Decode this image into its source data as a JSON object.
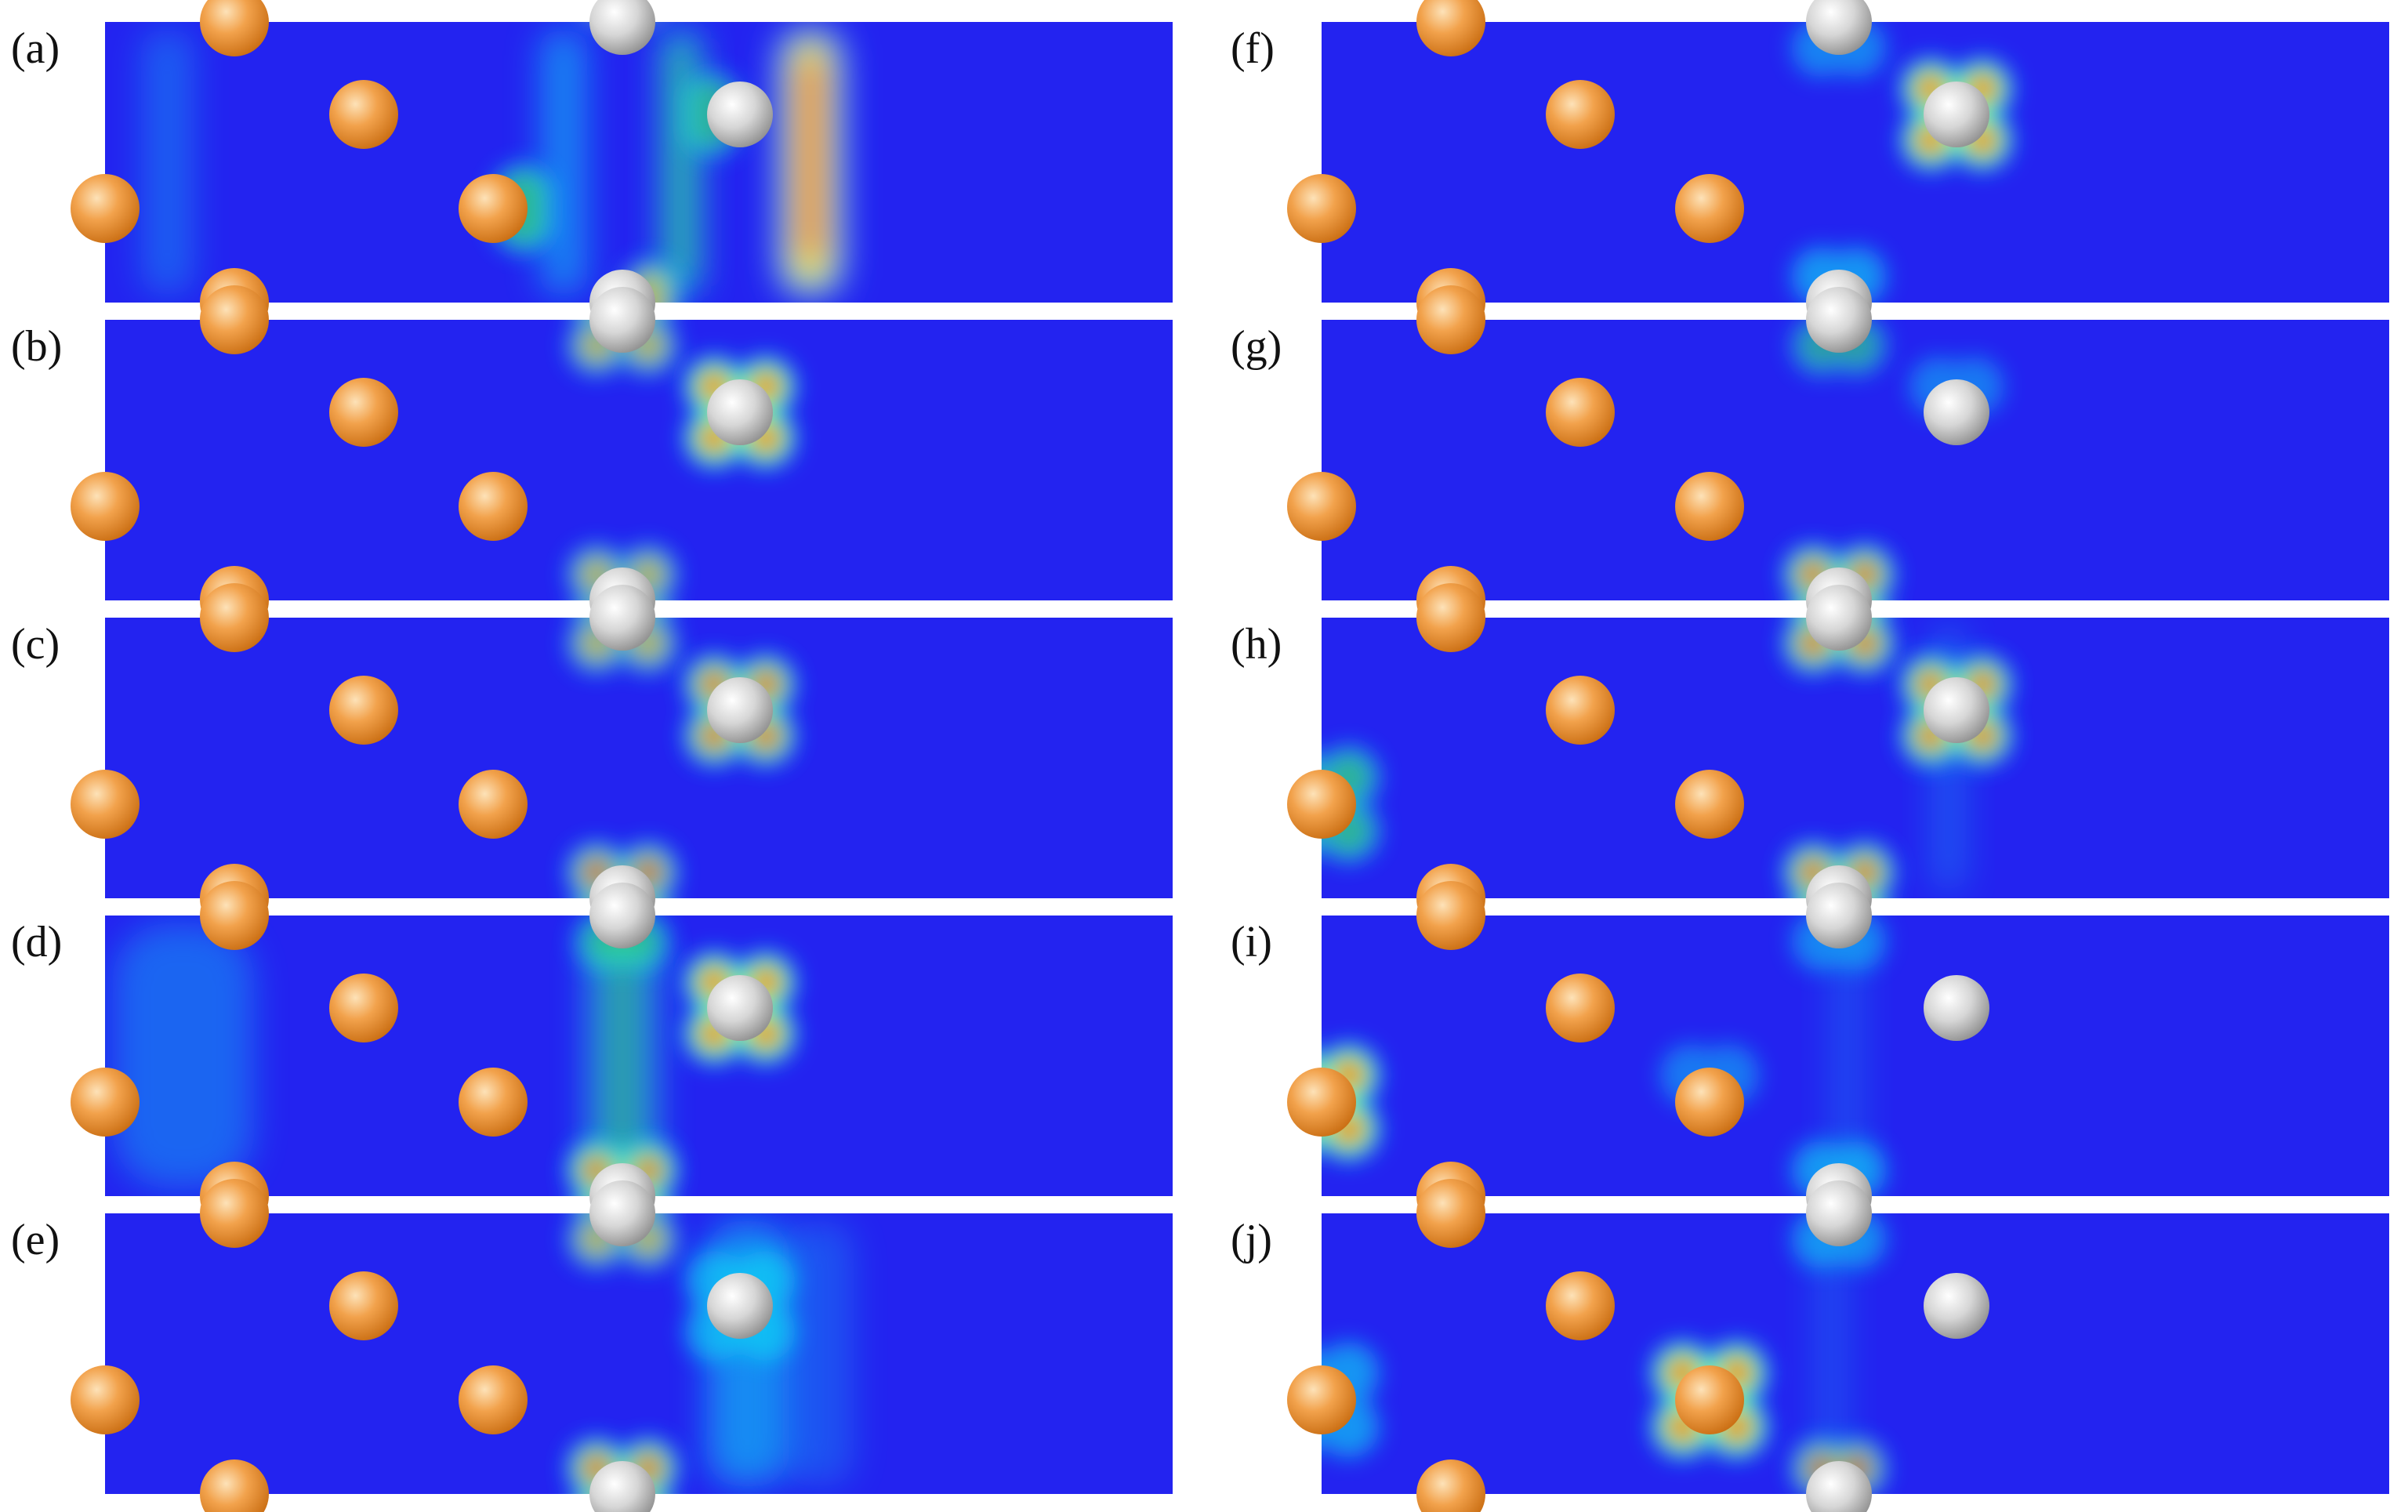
{
  "figure": {
    "panels": [
      {
        "label": "(a)",
        "silver_glow": [
          {
            "atom": 0,
            "color": "red",
            "strength": 0.5,
            "pattern": "top"
          },
          {
            "atom": 1,
            "color": "green",
            "strength": 0.5,
            "pattern": "left"
          },
          {
            "atom": 2,
            "color": "yellow",
            "strength": 0.6,
            "pattern": "right"
          }
        ],
        "gold_glow": [
          {
            "atom": 3,
            "color": "green",
            "strength": 0.6,
            "pattern": "right"
          }
        ],
        "bands": [
          {
            "at": "silver-1",
            "offset": 0.9,
            "width": 0.55,
            "color": "red",
            "strength": 1.0
          },
          {
            "at": "silver-0",
            "offset": 0.75,
            "width": 0.35,
            "color": "green",
            "strength": 0.7
          },
          {
            "at": "gold-3",
            "offset": 0.9,
            "width": 0.4,
            "color": "cyan",
            "strength": 0.5
          },
          {
            "at": "gold-2",
            "offset": 0.8,
            "width": 0.45,
            "color": "cyan",
            "strength": 0.3
          }
        ]
      },
      {
        "label": "(b)",
        "silver_glow": [
          {
            "atom": 0,
            "color": "yellow",
            "strength": 0.6,
            "pattern": "cross"
          },
          {
            "atom": 1,
            "color": "red",
            "strength": 0.9,
            "pattern": "cross"
          },
          {
            "atom": 2,
            "color": "yellow",
            "strength": 0.6,
            "pattern": "cross"
          }
        ],
        "gold_glow": [],
        "bands": []
      },
      {
        "label": "(c)",
        "silver_glow": [
          {
            "atom": 0,
            "color": "yellow",
            "strength": 0.6,
            "pattern": "cross"
          },
          {
            "atom": 1,
            "color": "red",
            "strength": 0.8,
            "pattern": "cross"
          },
          {
            "atom": 2,
            "color": "red",
            "strength": 0.7,
            "pattern": "cross"
          }
        ],
        "gold_glow": [],
        "bands": []
      },
      {
        "label": "(d)",
        "silver_glow": [
          {
            "atom": 0,
            "color": "green",
            "strength": 0.5,
            "pattern": "bottom"
          },
          {
            "atom": 1,
            "color": "red",
            "strength": 0.9,
            "pattern": "cross"
          },
          {
            "atom": 2,
            "color": "red",
            "strength": 0.8,
            "pattern": "cross"
          }
        ],
        "gold_glow": [],
        "bands": [
          {
            "at": "silver-0",
            "offset": 0.0,
            "width": 0.6,
            "color": "green",
            "strength": 0.6
          },
          {
            "at": "gold-2",
            "offset": 1.0,
            "width": 1.2,
            "color": "cyan",
            "strength": 0.35
          }
        ]
      },
      {
        "label": "(e)",
        "silver_glow": [
          {
            "atom": 0,
            "color": "yellow",
            "strength": 0.6,
            "pattern": "cross"
          },
          {
            "atom": 1,
            "color": "cyan",
            "strength": 0.5,
            "pattern": "cross"
          },
          {
            "atom": 2,
            "color": "red",
            "strength": 0.8,
            "pattern": "cross"
          }
        ],
        "gold_glow": [],
        "bands": [
          {
            "at": "silver-1",
            "offset": 0.1,
            "width": 0.7,
            "color": "cyan",
            "strength": 0.55
          },
          {
            "at": "silver-1",
            "offset": 1.0,
            "width": 0.6,
            "color": "cyan",
            "strength": 0.25
          }
        ]
      },
      {
        "label": "(f)",
        "silver_glow": [
          {
            "atom": 0,
            "color": "cyan",
            "strength": 0.4,
            "pattern": "bottom"
          },
          {
            "atom": 1,
            "color": "red",
            "strength": 0.95,
            "pattern": "cross"
          },
          {
            "atom": 2,
            "color": "cyan",
            "strength": 0.5,
            "pattern": "top"
          }
        ],
        "gold_glow": [],
        "bands": []
      },
      {
        "label": "(g)",
        "silver_glow": [
          {
            "atom": 0,
            "color": "green",
            "strength": 0.5,
            "pattern": "bottom"
          },
          {
            "atom": 1,
            "color": "cyan",
            "strength": 0.35,
            "pattern": "top"
          },
          {
            "atom": 2,
            "color": "red",
            "strength": 0.8,
            "pattern": "cross"
          }
        ],
        "gold_glow": [],
        "bands": []
      },
      {
        "label": "(h)",
        "silver_glow": [
          {
            "atom": 0,
            "color": "red",
            "strength": 0.8,
            "pattern": "cross"
          },
          {
            "atom": 1,
            "color": "red",
            "strength": 0.85,
            "pattern": "cross"
          },
          {
            "atom": 2,
            "color": "red",
            "strength": 0.8,
            "pattern": "cross"
          }
        ],
        "gold_glow": [
          {
            "atom": 3,
            "color": "green",
            "strength": 0.6,
            "pattern": "cross"
          }
        ],
        "bands": [
          {
            "at": "silver-1",
            "offset": -0.1,
            "width": 0.3,
            "color": "cyan",
            "strength": 0.25
          }
        ]
      },
      {
        "label": "(i)",
        "silver_glow": [
          {
            "atom": 0,
            "color": "cyan",
            "strength": 0.4,
            "pattern": "bottom"
          },
          {
            "atom": 2,
            "color": "cyan",
            "strength": 0.5,
            "pattern": "top"
          }
        ],
        "gold_glow": [
          {
            "atom": 3,
            "color": "red",
            "strength": 0.9,
            "pattern": "cross"
          },
          {
            "atom": 2,
            "color": "cyan",
            "strength": 0.35,
            "pattern": "top"
          }
        ],
        "bands": [
          {
            "at": "silver-0",
            "offset": 0.1,
            "width": 0.3,
            "color": "cyan",
            "strength": 0.2
          }
        ]
      },
      {
        "label": "(j)",
        "silver_glow": [
          {
            "atom": 0,
            "color": "cyan",
            "strength": 0.45,
            "pattern": "bottom"
          },
          {
            "atom": 2,
            "color": "red",
            "strength": 0.65,
            "pattern": "top"
          }
        ],
        "gold_glow": [
          {
            "atom": 2,
            "color": "red",
            "strength": 0.95,
            "pattern": "cross"
          },
          {
            "atom": 3,
            "color": "cyan",
            "strength": 0.5,
            "pattern": "cross"
          }
        ],
        "bands": [
          {
            "at": "silver-0",
            "offset": -0.1,
            "width": 0.3,
            "color": "cyan",
            "strength": 0.2
          }
        ]
      }
    ],
    "colors": {
      "background": "#2323f0",
      "cyan": "#10e0f5",
      "green": "#30ee70",
      "yellow": "#f0f020",
      "red": "#ee1010",
      "gold_atom": "#e8902c",
      "silver_atom": "#c4c4c4"
    }
  }
}
